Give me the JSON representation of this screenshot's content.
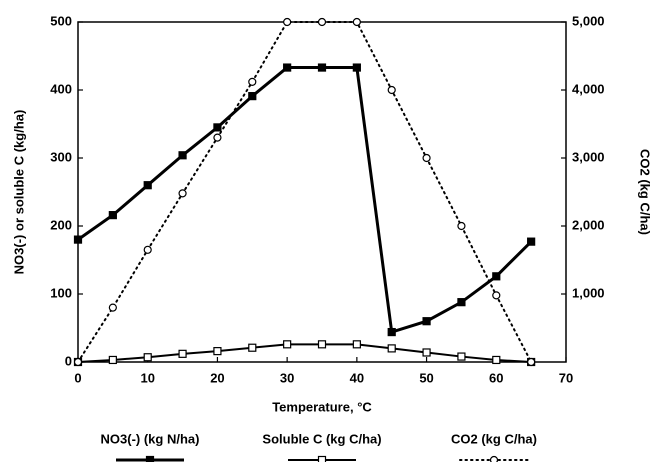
{
  "chart_data": {
    "type": "line",
    "x_label": "Temperature, °C",
    "y_label": "NO3(-) or soluble C (kg/ha)",
    "y2_label": "CO2 (kg C/ha)",
    "x": [
      0,
      5,
      10,
      15,
      20,
      25,
      30,
      35,
      40,
      45,
      50,
      55,
      60,
      65
    ],
    "xlim": [
      0,
      70
    ],
    "xticks": [
      0,
      10,
      20,
      30,
      40,
      50,
      60,
      70
    ],
    "ylim": [
      0,
      500
    ],
    "yticks": [
      0,
      100,
      200,
      300,
      400,
      500
    ],
    "y2lim": [
      0,
      5000
    ],
    "y2ticks": [
      {
        "value": 1000,
        "label": "1,000"
      },
      {
        "value": 2000,
        "label": "2,000"
      },
      {
        "value": 3000,
        "label": "3,000"
      },
      {
        "value": 4000,
        "label": "4,000"
      },
      {
        "value": 5000,
        "label": "5,000"
      }
    ],
    "legend": "bottom",
    "series": [
      {
        "name": "NO3(-) (kg N/ha)",
        "color": "#000000",
        "marker": "filled-square",
        "line": "solid-thick",
        "values": [
          180,
          216,
          260,
          304,
          345,
          391,
          433,
          433,
          433,
          44,
          60,
          88,
          126,
          177
        ]
      },
      {
        "name": "Soluble C (kg C/ha)",
        "color": "#000000",
        "marker": "open-square",
        "line": "solid",
        "values": [
          0,
          3,
          7,
          12,
          16,
          21,
          26,
          26,
          26,
          20,
          14,
          8,
          3,
          0
        ]
      },
      {
        "name": "CO2 (kg C/ha)",
        "color": "#000000",
        "marker": "open-circle",
        "line": "dotted",
        "axis": "y2",
        "values": [
          0,
          800,
          1650,
          2480,
          3300,
          4120,
          5000,
          5000,
          5000,
          4000,
          3000,
          2000,
          980,
          0
        ]
      }
    ]
  }
}
